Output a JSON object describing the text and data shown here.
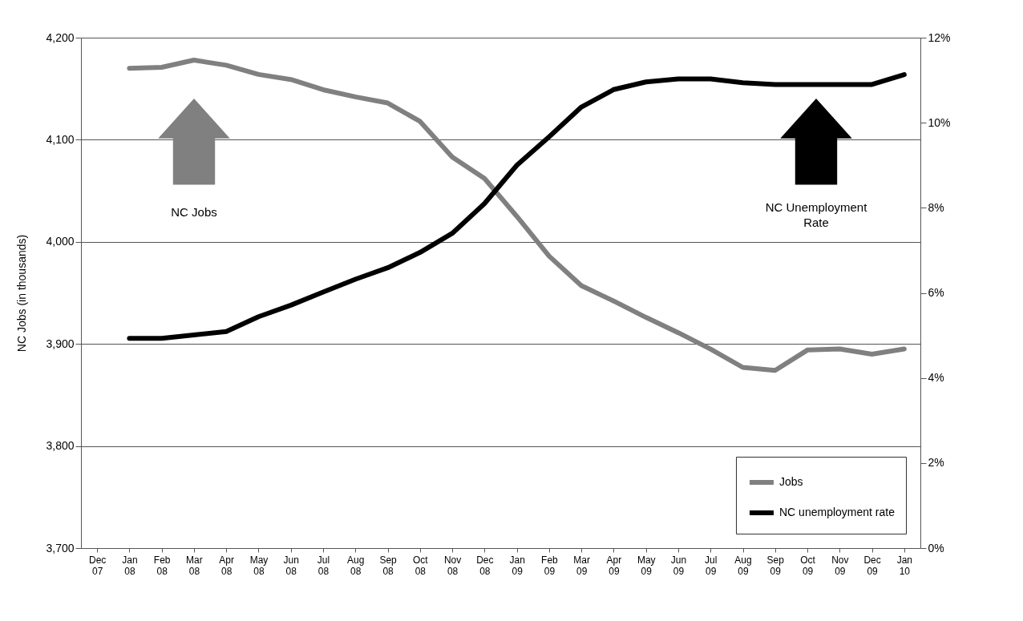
{
  "chart_data": {
    "type": "line",
    "ylabel": "NC Jobs (in thousands)",
    "categories": [
      "Dec 07",
      "Jan 08",
      "Feb 08",
      "Mar 08",
      "Apr 08",
      "May 08",
      "Jun 08",
      "Jul 08",
      "Aug 08",
      "Sep 08",
      "Oct 08",
      "Nov 08",
      "Dec 08",
      "Jan 09",
      "Feb 09",
      "Mar 09",
      "Apr 09",
      "May 09",
      "Jun 09",
      "Jul 09",
      "Aug 09",
      "Sep 09",
      "Oct 09",
      "Nov 09",
      "Dec 09",
      "Jan 10"
    ],
    "series": [
      {
        "name": "Jobs",
        "color": "#808080",
        "values": [
          null,
          4170,
          4171,
          4178,
          4173,
          4164,
          4159,
          4149,
          4142,
          4136,
          4118,
          4083,
          4062,
          4025,
          3986,
          3957,
          3942,
          3926,
          3911,
          3895,
          3877,
          3874,
          3894,
          3895,
          3890,
          3895
        ]
      },
      {
        "name": "NC unemployment rate",
        "color": "#000000",
        "axis": "y2",
        "values": [
          null,
          4.93,
          4.93,
          5.01,
          5.09,
          5.44,
          5.71,
          6.02,
          6.32,
          6.59,
          6.95,
          7.4,
          8.1,
          9.0,
          9.67,
          10.37,
          10.78,
          10.96,
          11.03,
          11.03,
          10.94,
          10.9,
          10.9,
          10.9,
          10.9,
          11.13
        ]
      }
    ],
    "ylim": [
      3700,
      4200
    ],
    "yticks": [
      {
        "value": 3700,
        "label": "3,700"
      },
      {
        "value": 3800,
        "label": "3,800"
      },
      {
        "value": 3900,
        "label": "3,900"
      },
      {
        "value": 4000,
        "label": "4,000"
      },
      {
        "value": 4100,
        "label": "4,100"
      },
      {
        "value": 4200,
        "label": "4,200"
      }
    ],
    "y2lim": [
      0,
      12
    ],
    "y2ticks": [
      {
        "value": 0,
        "label": "0%"
      },
      {
        "value": 2,
        "label": "2%"
      },
      {
        "value": 4,
        "label": "4%"
      },
      {
        "value": 6,
        "label": "6%"
      },
      {
        "value": 8,
        "label": "8%"
      },
      {
        "value": 10,
        "label": "10%"
      },
      {
        "value": 12,
        "label": "12%"
      }
    ],
    "grid": "y",
    "legend": "bottom right",
    "marker": "none",
    "line_style": "solid",
    "annotations": [
      "NC Jobs",
      "NC Unemployment Rate"
    ]
  }
}
